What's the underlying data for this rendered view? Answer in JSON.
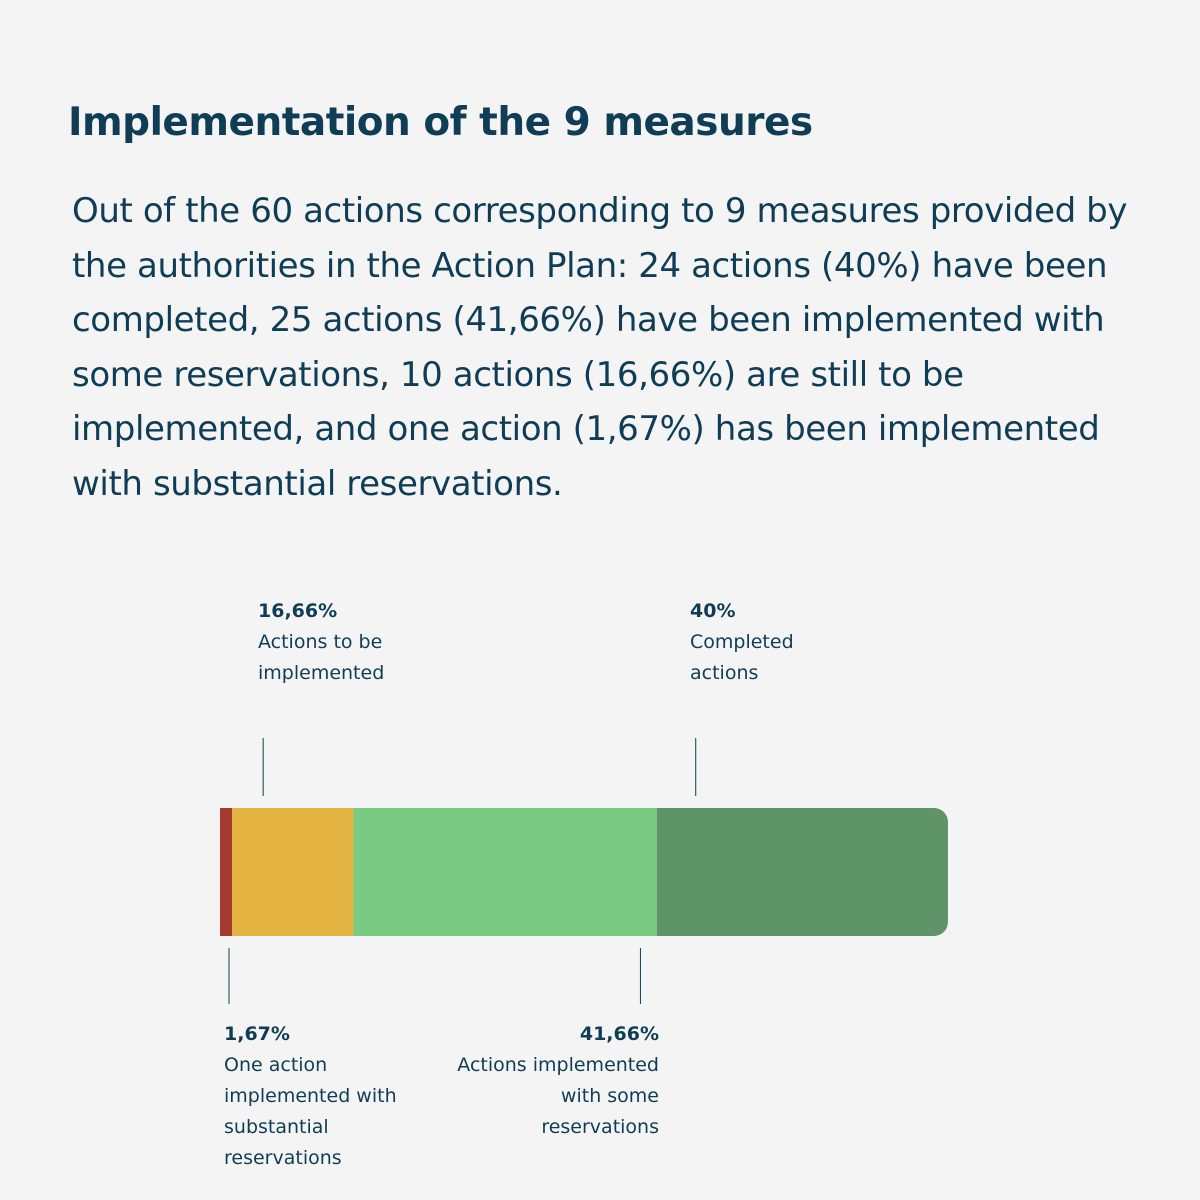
{
  "chart_data": {
    "type": "stacked-bar",
    "title": "Implementation of the 9 measures",
    "subtitle": "Out of the 60 actions corresponding to 9 measures provided by the authorities in the Action Plan: 24 actions (40%) have been completed, 25 actions (41,66%) have been implemented with some reservations, 10 actions (16,66%) are still to be implemented, and one action (1,67%) has been implemented with substantial reservations.",
    "xlim": [
      0,
      100
    ],
    "series": [
      {
        "name": "One action implemented with substantial reservations",
        "color": "#a63a2e",
        "values": [
          1.67
        ],
        "value_labels": [
          "1,67%"
        ]
      },
      {
        "name": "Actions to be implemented",
        "color": "#e2b340",
        "values": [
          16.66
        ],
        "value_labels": [
          "16,66%"
        ]
      },
      {
        "name": "Actions implemented with some reservations",
        "color": "#7aca84",
        "values": [
          41.66
        ],
        "value_labels": [
          "41,66%"
        ]
      },
      {
        "name": "Completed actions",
        "color": "#5e9467",
        "values": [
          40
        ],
        "value_labels": [
          "40%"
        ]
      }
    ]
  }
}
